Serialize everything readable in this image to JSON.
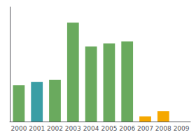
{
  "chart_data": {
    "type": "bar",
    "categories": [
      "2000",
      "2001",
      "2002",
      "2003",
      "2004",
      "2005",
      "2006",
      "2007",
      "2008",
      "2009"
    ],
    "values": [
      35,
      38,
      40,
      95,
      72,
      75,
      77,
      5,
      10,
      0
    ],
    "colors": [
      "#6aaa5e",
      "#3a9ea5",
      "#6aaa5e",
      "#6aaa5e",
      "#6aaa5e",
      "#6aaa5e",
      "#6aaa5e",
      "#f5a800",
      "#f5a800",
      "#6aaa5e"
    ],
    "ylim": [
      0,
      110
    ],
    "yticks": [],
    "grid": false,
    "tick_labels": "x"
  }
}
